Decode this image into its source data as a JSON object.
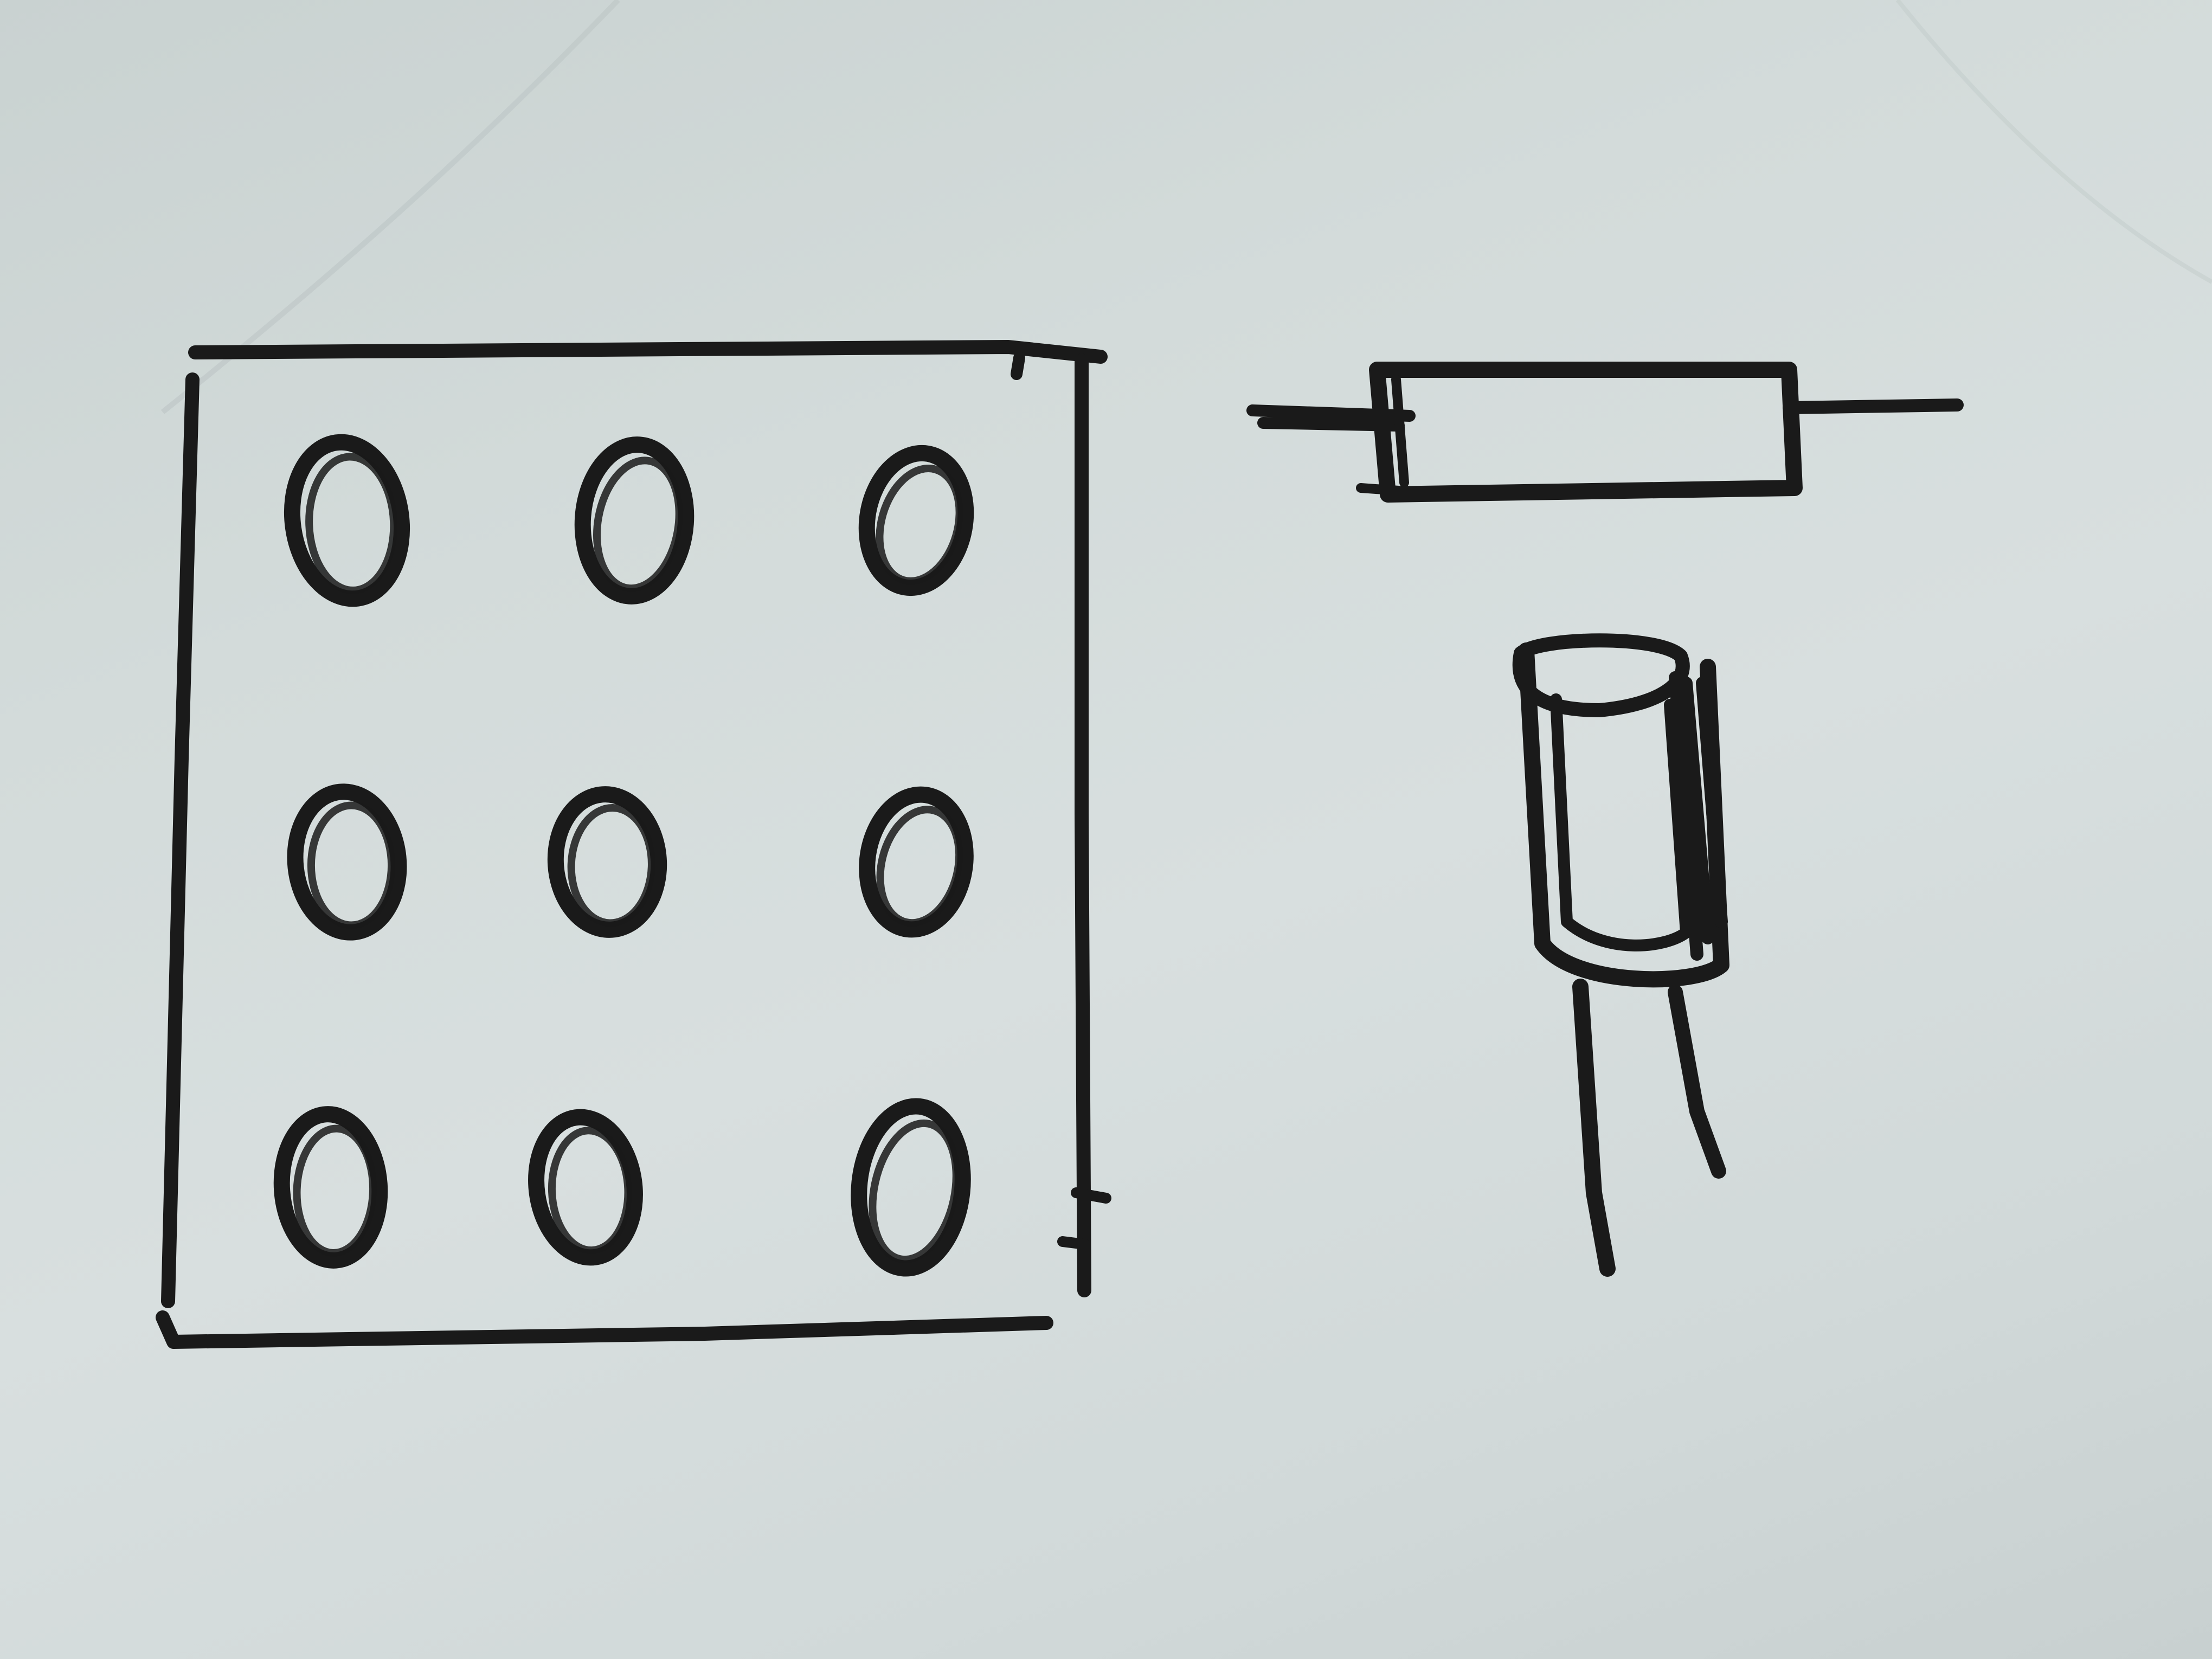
{
  "sketch": {
    "ink_color": "#1a1a1a",
    "paper_color": "#d3dbda",
    "perfboard": {
      "rows": 3,
      "columns": 3,
      "hole_count": 9
    },
    "components": [
      "perfboard",
      "resistor",
      "capacitor"
    ]
  }
}
